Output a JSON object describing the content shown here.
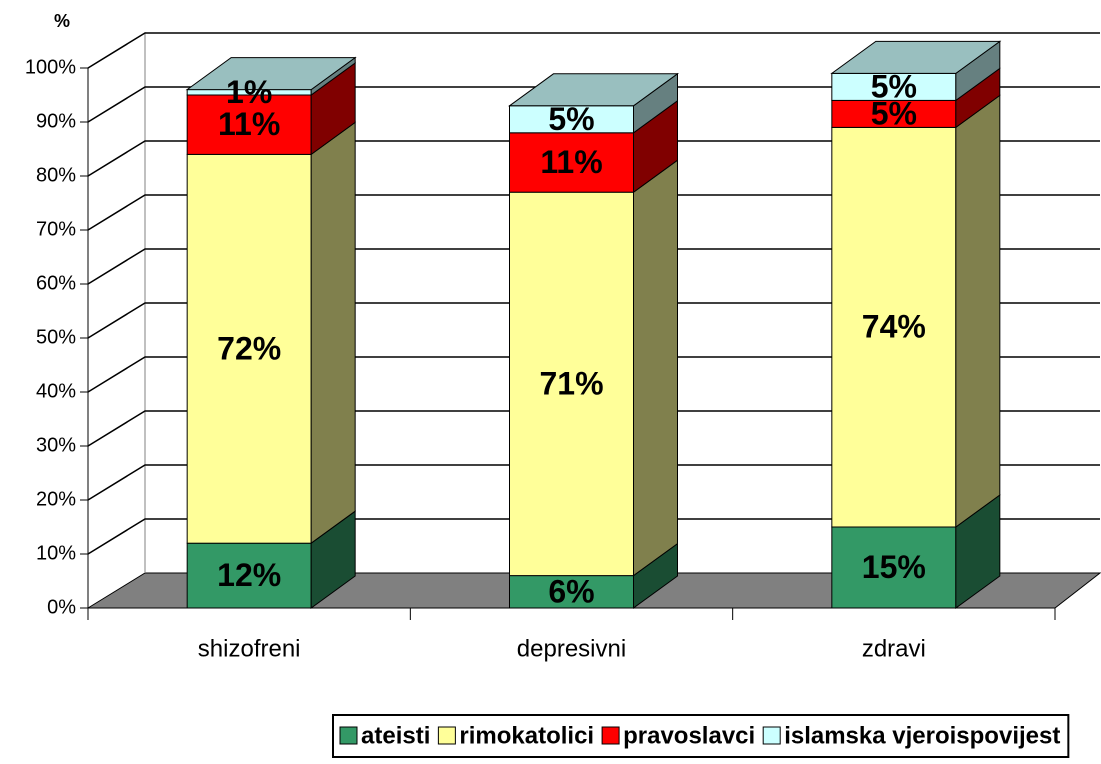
{
  "chart_data": {
    "type": "bar3d_stacked",
    "y_axis_label": "%",
    "categories": [
      "shizofreni",
      "depresivni",
      "zdravi"
    ],
    "series": [
      {
        "name": "ateisti",
        "color": "#339966",
        "values": [
          12,
          6,
          15
        ],
        "value_labels": [
          "12%",
          "6%",
          "15%"
        ]
      },
      {
        "name": "rimokatolici",
        "color": "#ffff99",
        "values": [
          72,
          71,
          74
        ],
        "value_labels": [
          "72%",
          "71%",
          "74%"
        ]
      },
      {
        "name": "pravoslavci",
        "color": "#ff0000",
        "values": [
          11,
          11,
          5
        ],
        "value_labels": [
          "11%",
          "11%",
          "5%"
        ]
      },
      {
        "name": "islamska vjeroispovijest",
        "color": "#ccffff",
        "values": [
          1,
          5,
          5
        ],
        "value_labels": [
          "1%",
          "5%",
          "5%"
        ]
      }
    ],
    "ylim": [
      0,
      100
    ],
    "yticks": [
      {
        "value": 0,
        "label": "0%"
      },
      {
        "value": 10,
        "label": "10%"
      },
      {
        "value": 20,
        "label": "20%"
      },
      {
        "value": 30,
        "label": "30%"
      },
      {
        "value": 40,
        "label": "40%"
      },
      {
        "value": 50,
        "label": "50%"
      },
      {
        "value": 60,
        "label": "60%"
      },
      {
        "value": 70,
        "label": "70%"
      },
      {
        "value": 80,
        "label": "80%"
      },
      {
        "value": 90,
        "label": "90%"
      },
      {
        "value": 100,
        "label": "100%"
      }
    ],
    "grid": true,
    "legend": "bottom"
  }
}
